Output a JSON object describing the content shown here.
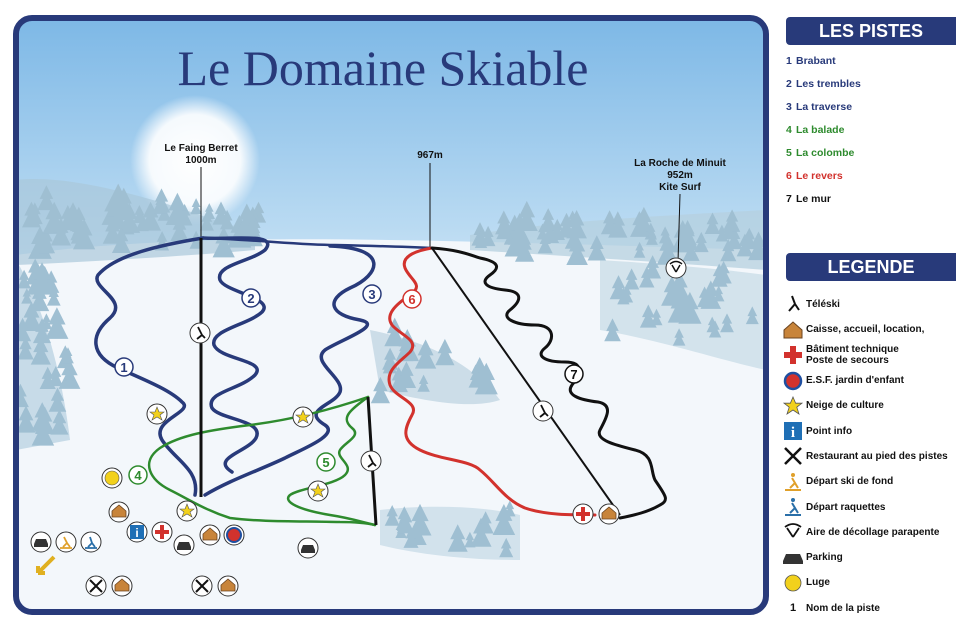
{
  "map": {
    "title": "Le Domaine Skiable",
    "peaks": {
      "faing_name": "Le Faing Berret",
      "faing_alt": "1000m",
      "center_alt": "967m",
      "roche_name": "La Roche de Minuit",
      "roche_alt": "952m",
      "roche_note": "Kite Surf"
    },
    "piste_labels": [
      "1",
      "2",
      "3",
      "4",
      "5",
      "6",
      "7"
    ]
  },
  "pistes_panel": {
    "header": "LES PISTES",
    "items": [
      {
        "num": "1",
        "name": "Brabant",
        "color": "#283a7a"
      },
      {
        "num": "2",
        "name": "Les trembles",
        "color": "#283a7a"
      },
      {
        "num": "3",
        "name": "La traverse",
        "color": "#283a7a"
      },
      {
        "num": "4",
        "name": "La balade",
        "color": "#2e8b2e"
      },
      {
        "num": "5",
        "name": "La colombe",
        "color": "#2e8b2e"
      },
      {
        "num": "6",
        "name": "Le revers",
        "color": "#d2322d"
      },
      {
        "num": "7",
        "name": "Le mur",
        "color": "#111111"
      }
    ]
  },
  "legend_panel": {
    "header": "LEGENDE",
    "items": [
      {
        "icon": "ski-lift-icon",
        "label": "Téléski"
      },
      {
        "icon": "chalet-icon",
        "label": "Caisse, accueil, location,"
      },
      {
        "icon": "red-cross-icon",
        "label": "Bâtiment technique",
        "label2": "Poste de secours"
      },
      {
        "icon": "esf-icon",
        "label": "E.S.F. jardin d'enfant"
      },
      {
        "icon": "star-icon",
        "label": "Neige de culture"
      },
      {
        "icon": "info-icon",
        "label": "Point info"
      },
      {
        "icon": "restaurant-icon",
        "label": "Restaurant au pied des pistes"
      },
      {
        "icon": "cross-country-ski-icon",
        "label": "Départ ski de fond"
      },
      {
        "icon": "snowshoe-icon",
        "label": "Départ raquettes"
      },
      {
        "icon": "paraglider-icon",
        "label": "Aire de décollage parapente"
      },
      {
        "icon": "parking-icon",
        "label": "Parking"
      },
      {
        "icon": "sled-icon",
        "label": "Luge"
      },
      {
        "icon": "piste-number-icon",
        "symbol": "1",
        "label": "Nom de la piste"
      }
    ]
  },
  "colors": {
    "blue_piste": "#283a7a",
    "green_piste": "#2e8b2e",
    "red_piste": "#d2322d",
    "black_piste": "#111111",
    "frame": "#283a7a",
    "sky": "#8fc4ea"
  }
}
